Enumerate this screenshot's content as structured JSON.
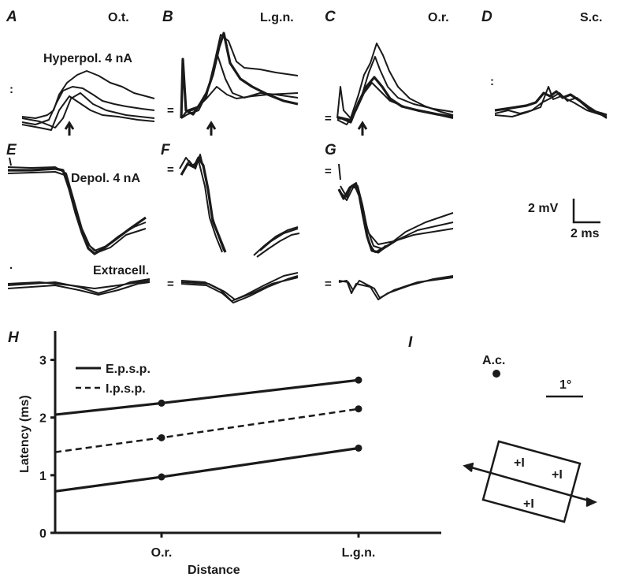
{
  "panels": {
    "A": {
      "letter": "A",
      "site": "O.t."
    },
    "B": {
      "letter": "B",
      "site": "L.g.n."
    },
    "C": {
      "letter": "C",
      "site": "O.r."
    },
    "D": {
      "letter": "D",
      "site": "S.c."
    },
    "E": {
      "letter": "E"
    },
    "F": {
      "letter": "F"
    },
    "G": {
      "letter": "G"
    },
    "H": {
      "letter": "H"
    },
    "I": {
      "letter": "I"
    }
  },
  "trace_labels": {
    "hyperpol": "Hyperpol. 4 nA",
    "depol": "Depol. 4 nA",
    "extracell": "Extracell."
  },
  "scale_bar": {
    "voltage": "2 mV",
    "time": "2 ms"
  },
  "chart_data": {
    "type": "line",
    "xlabel": "Distance",
    "ylabel": "Latency (ms)",
    "categories": [
      "O.r.",
      "L.g.n."
    ],
    "x": [
      0,
      1,
      2
    ],
    "ylim": [
      0,
      3.5
    ],
    "yticks": [
      0,
      1,
      2,
      3
    ],
    "series": [
      {
        "name": "E.p.s.p.",
        "style": "solid",
        "values": [
          2.05,
          2.25,
          2.65
        ]
      },
      {
        "name": "I.p.s.p.",
        "style": "dashed",
        "values": [
          1.4,
          1.65,
          2.15
        ]
      },
      {
        "style": "solid",
        "values": [
          0.72,
          0.97,
          1.47
        ]
      }
    ],
    "legend": {
      "position": "top-left",
      "items": [
        "E.p.s.p.",
        "I.p.s.p."
      ]
    }
  },
  "field_diagram": {
    "centre_label": "A.c.",
    "scale_label": "1°",
    "symbol": "+I"
  }
}
